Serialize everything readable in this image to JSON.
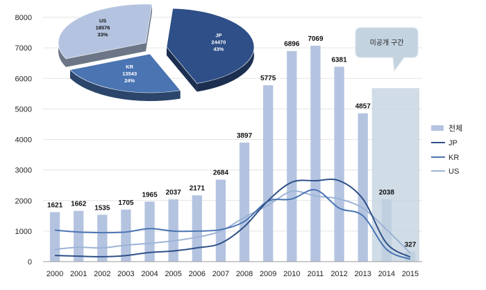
{
  "chart_data": [
    {
      "type": "bar",
      "categories": [
        "2000",
        "2001",
        "2002",
        "2003",
        "2004",
        "2005",
        "2006",
        "2007",
        "2008",
        "2009",
        "2010",
        "2011",
        "2012",
        "2013",
        "2014",
        "2015"
      ],
      "ylim": [
        0,
        8000
      ],
      "yticks": [
        0,
        1000,
        2000,
        3000,
        4000,
        5000,
        6000,
        7000,
        8000
      ],
      "legend_position": "right",
      "unpublished_label": "미공개 구간",
      "unpublished_range": [
        "2014",
        "2015"
      ],
      "colors": {
        "total": "#b4c4e0",
        "jp": "#2e4f87",
        "kr": "#4a74b2",
        "us": "#9cb3d6",
        "unpublished": "#c4d3e0"
      },
      "series": [
        {
          "key": "total",
          "name": "전체",
          "kind": "bar",
          "values": [
            1621,
            1662,
            1535,
            1705,
            1965,
            2037,
            2171,
            2684,
            3897,
            5775,
            6896,
            7069,
            6381,
            4857,
            2038,
            327
          ]
        },
        {
          "key": "jp",
          "name": "JP",
          "kind": "line",
          "values": [
            200,
            180,
            160,
            200,
            300,
            350,
            450,
            600,
            1150,
            2000,
            2600,
            2650,
            2650,
            2050,
            600,
            150
          ]
        },
        {
          "key": "kr",
          "name": "KR",
          "kind": "line",
          "values": [
            1030,
            970,
            950,
            970,
            1080,
            1000,
            1000,
            1050,
            1320,
            1980,
            2050,
            2350,
            1750,
            1500,
            400,
            80
          ]
        },
        {
          "key": "us",
          "name": "US",
          "kind": "line",
          "values": [
            400,
            470,
            450,
            540,
            600,
            680,
            800,
            1000,
            1450,
            1850,
            2300,
            2150,
            2050,
            1750,
            1050,
            280
          ]
        }
      ]
    },
    {
      "type": "pie",
      "slices": [
        {
          "label": "JP",
          "value": 24470,
          "percent": "43%",
          "color": "#2e4f87",
          "text_color": "#ffffff"
        },
        {
          "label": "KR",
          "value": 13543,
          "percent": "24%",
          "color": "#4a74b2",
          "text_color": "#ffffff"
        },
        {
          "label": "US",
          "value": 18576,
          "percent": "33%",
          "color": "#b4c4e0",
          "text_color": "#111111"
        }
      ]
    }
  ]
}
